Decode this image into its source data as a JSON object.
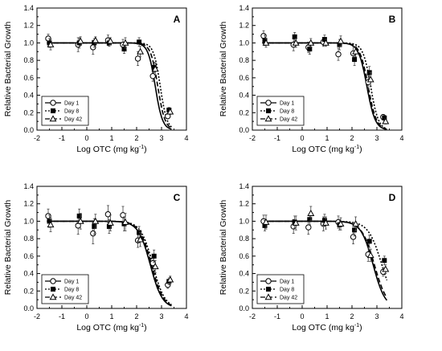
{
  "chart_data": [
    {
      "type": "scatter",
      "panel_label": "A",
      "xlabel": "Log OTC (mg kg",
      "xlabel_sup": "-1",
      "xlabel_close": ")",
      "ylabel": "Relative Bacterial Growth",
      "xlim": [
        -2,
        4
      ],
      "ylim": [
        0.0,
        1.4
      ],
      "xticks": [
        "-2",
        "-1",
        "0",
        "1",
        "2",
        "3",
        "4"
      ],
      "yticks": [
        "0.0",
        "0.2",
        "0.4",
        "0.6",
        "0.8",
        "1.0",
        "1.2",
        "1.4"
      ],
      "legend_position": "bottom-left",
      "series": [
        {
          "name": "Day 1",
          "marker": "circle-open",
          "line": "solid",
          "x": [
            -1.5,
            -0.3,
            0.3,
            0.9,
            1.5,
            2.1,
            2.7,
            3.3
          ],
          "y": [
            1.05,
            0.98,
            0.95,
            1.03,
            0.98,
            0.82,
            0.62,
            0.16
          ],
          "err": [
            0.05,
            0.08,
            0.08,
            0.06,
            0.06,
            0.08,
            0.06,
            0.03
          ],
          "curve": {
            "top": 1.0,
            "ec50": 2.75,
            "slope": 3.0
          }
        },
        {
          "name": "Day 8",
          "marker": "square-filled",
          "line": "dotted",
          "x": [
            -1.5,
            -0.3,
            0.3,
            0.9,
            1.5,
            2.1,
            2.7,
            3.3
          ],
          "y": [
            1.0,
            1.0,
            1.0,
            1.0,
            0.93,
            1.01,
            0.72,
            0.23
          ],
          "err": [
            0.05,
            0.06,
            0.05,
            0.04,
            0.05,
            0.05,
            0.06,
            0.03
          ],
          "curve": {
            "top": 1.0,
            "ec50": 2.95,
            "slope": 3.2
          }
        },
        {
          "name": "Day 42",
          "marker": "triangle-open",
          "line": "dashed",
          "x": [
            -1.5,
            -0.3,
            0.3,
            0.9,
            1.5,
            2.1,
            2.7,
            3.3
          ],
          "y": [
            0.98,
            1.02,
            1.03,
            1.02,
            1.0,
            0.9,
            0.7,
            0.21
          ],
          "err": [
            0.06,
            0.05,
            0.04,
            0.04,
            0.06,
            0.06,
            0.07,
            0.03
          ],
          "curve": {
            "top": 1.0,
            "ec50": 2.85,
            "slope": 3.0
          }
        }
      ]
    },
    {
      "type": "scatter",
      "panel_label": "B",
      "xlabel": "Log OTC (mg kg",
      "xlabel_sup": "-1",
      "xlabel_close": ")",
      "ylabel": "Relative Bacterial Growth",
      "xlim": [
        -2,
        4
      ],
      "ylim": [
        0.0,
        1.4
      ],
      "xticks": [
        "-2",
        "-1",
        "0",
        "1",
        "2",
        "3",
        "4"
      ],
      "yticks": [
        "0.0",
        "0.2",
        "0.4",
        "0.6",
        "0.8",
        "1.0",
        "1.2",
        "1.4"
      ],
      "legend_position": "bottom-left",
      "series": [
        {
          "name": "Day 1",
          "marker": "circle-open",
          "line": "solid",
          "x": [
            -1.5,
            -0.3,
            0.3,
            0.9,
            1.5,
            2.1,
            2.7,
            3.3
          ],
          "y": [
            1.08,
            0.98,
            0.95,
            1.01,
            0.87,
            0.88,
            0.55,
            0.15
          ],
          "err": [
            0.06,
            0.07,
            0.06,
            0.05,
            0.07,
            0.08,
            0.08,
            0.03
          ],
          "curve": {
            "top": 1.0,
            "ec50": 2.6,
            "slope": 2.6
          }
        },
        {
          "name": "Day 8",
          "marker": "square-filled",
          "line": "dotted",
          "x": [
            -1.5,
            -0.3,
            0.3,
            0.9,
            1.5,
            2.1,
            2.7,
            3.3
          ],
          "y": [
            1.03,
            1.07,
            0.93,
            1.04,
            0.98,
            0.81,
            0.66,
            0.14
          ],
          "err": [
            0.06,
            0.05,
            0.06,
            0.05,
            0.06,
            0.07,
            0.07,
            0.03
          ],
          "curve": {
            "top": 1.0,
            "ec50": 2.75,
            "slope": 2.8
          }
        },
        {
          "name": "Day 42",
          "marker": "triangle-open",
          "line": "dashed",
          "x": [
            -1.5,
            -0.3,
            0.3,
            0.9,
            1.5,
            2.1,
            2.7,
            3.3
          ],
          "y": [
            1.0,
            1.0,
            1.0,
            1.0,
            1.02,
            0.9,
            0.58,
            0.1
          ],
          "err": [
            0.05,
            0.05,
            0.05,
            0.04,
            0.06,
            0.06,
            0.08,
            0.03
          ],
          "curve": {
            "top": 1.0,
            "ec50": 2.65,
            "slope": 2.6
          }
        }
      ]
    },
    {
      "type": "scatter",
      "panel_label": "C",
      "xlabel": "Log OTC (mg kg",
      "xlabel_sup": "-1",
      "xlabel_close": ")",
      "ylabel": "Relative Bacterial Growth",
      "xlim": [
        -2,
        4
      ],
      "ylim": [
        0.0,
        1.4
      ],
      "xticks": [
        "-2",
        "-1",
        "0",
        "1",
        "2",
        "3",
        "4"
      ],
      "yticks": [
        "0.0",
        "0.2",
        "0.4",
        "0.6",
        "0.8",
        "1.0",
        "1.2",
        "1.4"
      ],
      "legend_position": "bottom-left",
      "series": [
        {
          "name": "Day 1",
          "marker": "circle-open",
          "line": "solid",
          "x": [
            -1.5,
            -0.3,
            0.3,
            0.9,
            1.5,
            2.1,
            2.7,
            3.3
          ],
          "y": [
            1.06,
            0.95,
            0.86,
            1.08,
            1.07,
            0.78,
            0.52,
            0.27
          ],
          "err": [
            0.08,
            0.1,
            0.12,
            0.1,
            0.1,
            0.08,
            0.07,
            0.04
          ],
          "curve": {
            "top": 1.0,
            "ec50": 2.55,
            "slope": 1.8
          }
        },
        {
          "name": "Day 8",
          "marker": "square-filled",
          "line": "dotted",
          "x": [
            -1.5,
            -0.3,
            0.3,
            0.9,
            1.5,
            2.1,
            2.7,
            3.3
          ],
          "y": [
            1.0,
            1.06,
            0.94,
            0.94,
            0.97,
            0.87,
            0.6,
            0.31
          ],
          "err": [
            0.07,
            0.08,
            0.09,
            0.08,
            0.08,
            0.07,
            0.07,
            0.04
          ],
          "curve": {
            "top": 1.0,
            "ec50": 2.65,
            "slope": 1.8
          }
        },
        {
          "name": "Day 42",
          "marker": "triangle-open",
          "line": "dashed",
          "x": [
            -1.5,
            -0.3,
            0.3,
            0.9,
            1.5,
            2.1,
            2.7,
            3.3
          ],
          "y": [
            0.96,
            1.0,
            1.0,
            0.98,
            0.99,
            0.79,
            0.48,
            0.33
          ],
          "err": [
            0.08,
            0.09,
            0.08,
            0.09,
            0.1,
            0.08,
            0.07,
            0.04
          ],
          "curve": {
            "top": 1.0,
            "ec50": 2.6,
            "slope": 1.8
          }
        }
      ]
    },
    {
      "type": "scatter",
      "panel_label": "D",
      "xlabel": "Log OTC (mg kg",
      "xlabel_sup": "-1",
      "xlabel_close": ")",
      "ylabel": "Relative Bacterial Growth",
      "xlim": [
        -2,
        4
      ],
      "ylim": [
        0.0,
        1.4
      ],
      "xticks": [
        "-2",
        "-1",
        "0",
        "1",
        "2",
        "3",
        "4"
      ],
      "yticks": [
        "0.0",
        "0.2",
        "0.4",
        "0.6",
        "0.8",
        "1.0",
        "1.2",
        "1.4"
      ],
      "legend_position": "bottom-left",
      "series": [
        {
          "name": "Day 1",
          "marker": "circle-open",
          "line": "solid",
          "x": [
            -1.5,
            -0.3,
            0.3,
            0.9,
            1.5,
            2.1,
            2.7,
            3.3
          ],
          "y": [
            1.0,
            0.94,
            0.93,
            0.97,
            0.99,
            0.82,
            0.62,
            0.42
          ],
          "err": [
            0.07,
            0.08,
            0.08,
            0.08,
            0.07,
            0.08,
            0.08,
            0.05
          ],
          "curve": {
            "top": 1.0,
            "ec50": 2.85,
            "slope": 1.8
          }
        },
        {
          "name": "Day 8",
          "marker": "square-filled",
          "line": "dotted",
          "x": [
            -1.5,
            -0.3,
            0.3,
            0.9,
            1.5,
            2.1,
            2.7,
            3.3
          ],
          "y": [
            0.95,
            0.99,
            1.02,
            1.01,
            0.96,
            0.9,
            0.77,
            0.55
          ],
          "err": [
            0.06,
            0.07,
            0.06,
            0.07,
            0.06,
            0.07,
            0.07,
            0.05
          ],
          "curve": {
            "top": 1.0,
            "ec50": 3.2,
            "slope": 1.6
          }
        },
        {
          "name": "Day 42",
          "marker": "triangle-open",
          "line": "dashed",
          "x": [
            -1.5,
            -0.3,
            0.3,
            0.9,
            1.5,
            2.1,
            2.7,
            3.3
          ],
          "y": [
            0.99,
            0.98,
            1.09,
            0.98,
            0.97,
            0.97,
            0.61,
            0.45
          ],
          "err": [
            0.08,
            0.08,
            0.08,
            0.07,
            0.07,
            0.08,
            0.07,
            0.05
          ],
          "curve": {
            "top": 1.0,
            "ec50": 2.9,
            "slope": 1.7
          }
        }
      ]
    }
  ]
}
